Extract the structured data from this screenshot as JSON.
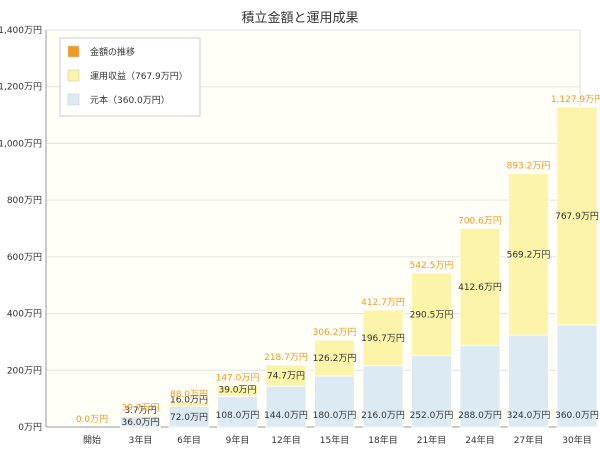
{
  "chart_data": {
    "type": "bar",
    "title": "積立金額と運用成果",
    "xlabel": "",
    "ylabel": "",
    "categories": [
      "開始",
      "3年目",
      "6年目",
      "9年目",
      "12年目",
      "15年目",
      "18年目",
      "21年目",
      "24年目",
      "27年目",
      "30年目"
    ],
    "ylim": [
      0,
      1400
    ],
    "y_ticks": [
      0,
      200,
      400,
      600,
      800,
      1000,
      1200,
      1400
    ],
    "y_tick_labels": [
      "0万円",
      "200万円",
      "400万円",
      "600万円",
      "800万円",
      "1,000万円",
      "1,200万円",
      "1,400万円"
    ],
    "series": [
      {
        "name": "元本（360.0万円）",
        "color": "#dcebf3",
        "values": [
          0,
          36.0,
          72.0,
          108.0,
          144.0,
          180.0,
          216.0,
          252.0,
          288.0,
          324.0,
          360.0
        ],
        "labels": [
          "",
          "36.0万円",
          "72.0万円",
          "108.0万円",
          "144.0万円",
          "180.0万円",
          "216.0万円",
          "252.0万円",
          "288.0万円",
          "324.0万円",
          "360.0万円"
        ]
      },
      {
        "name": "運用収益（767.9万円）",
        "color": "#fbf4a9",
        "values": [
          0,
          3.7,
          16.0,
          39.0,
          74.7,
          126.2,
          196.7,
          290.5,
          412.6,
          569.2,
          767.9
        ],
        "labels": [
          "",
          "3.7万円",
          "16.0万円",
          "39.0万円",
          "74.7万円",
          "126.2万円",
          "196.7万円",
          "290.5万円",
          "412.6万円",
          "569.2万円",
          "767.9万円"
        ]
      }
    ],
    "totals_series": {
      "name": "金額の推移",
      "color": "#f29a1f",
      "values": [
        0,
        39.7,
        88.0,
        147.0,
        218.7,
        306.2,
        412.7,
        542.5,
        700.6,
        893.2,
        1127.9
      ],
      "labels": [
        "0.0万円",
        "39.7万円",
        "88.0万円",
        "147.0万円",
        "218.7万円",
        "306.2万円",
        "412.7万円",
        "542.5万円",
        "700.6万円",
        "893.2万円",
        "1,127.9万円"
      ]
    },
    "grid": true,
    "legend_position": "top-left"
  }
}
